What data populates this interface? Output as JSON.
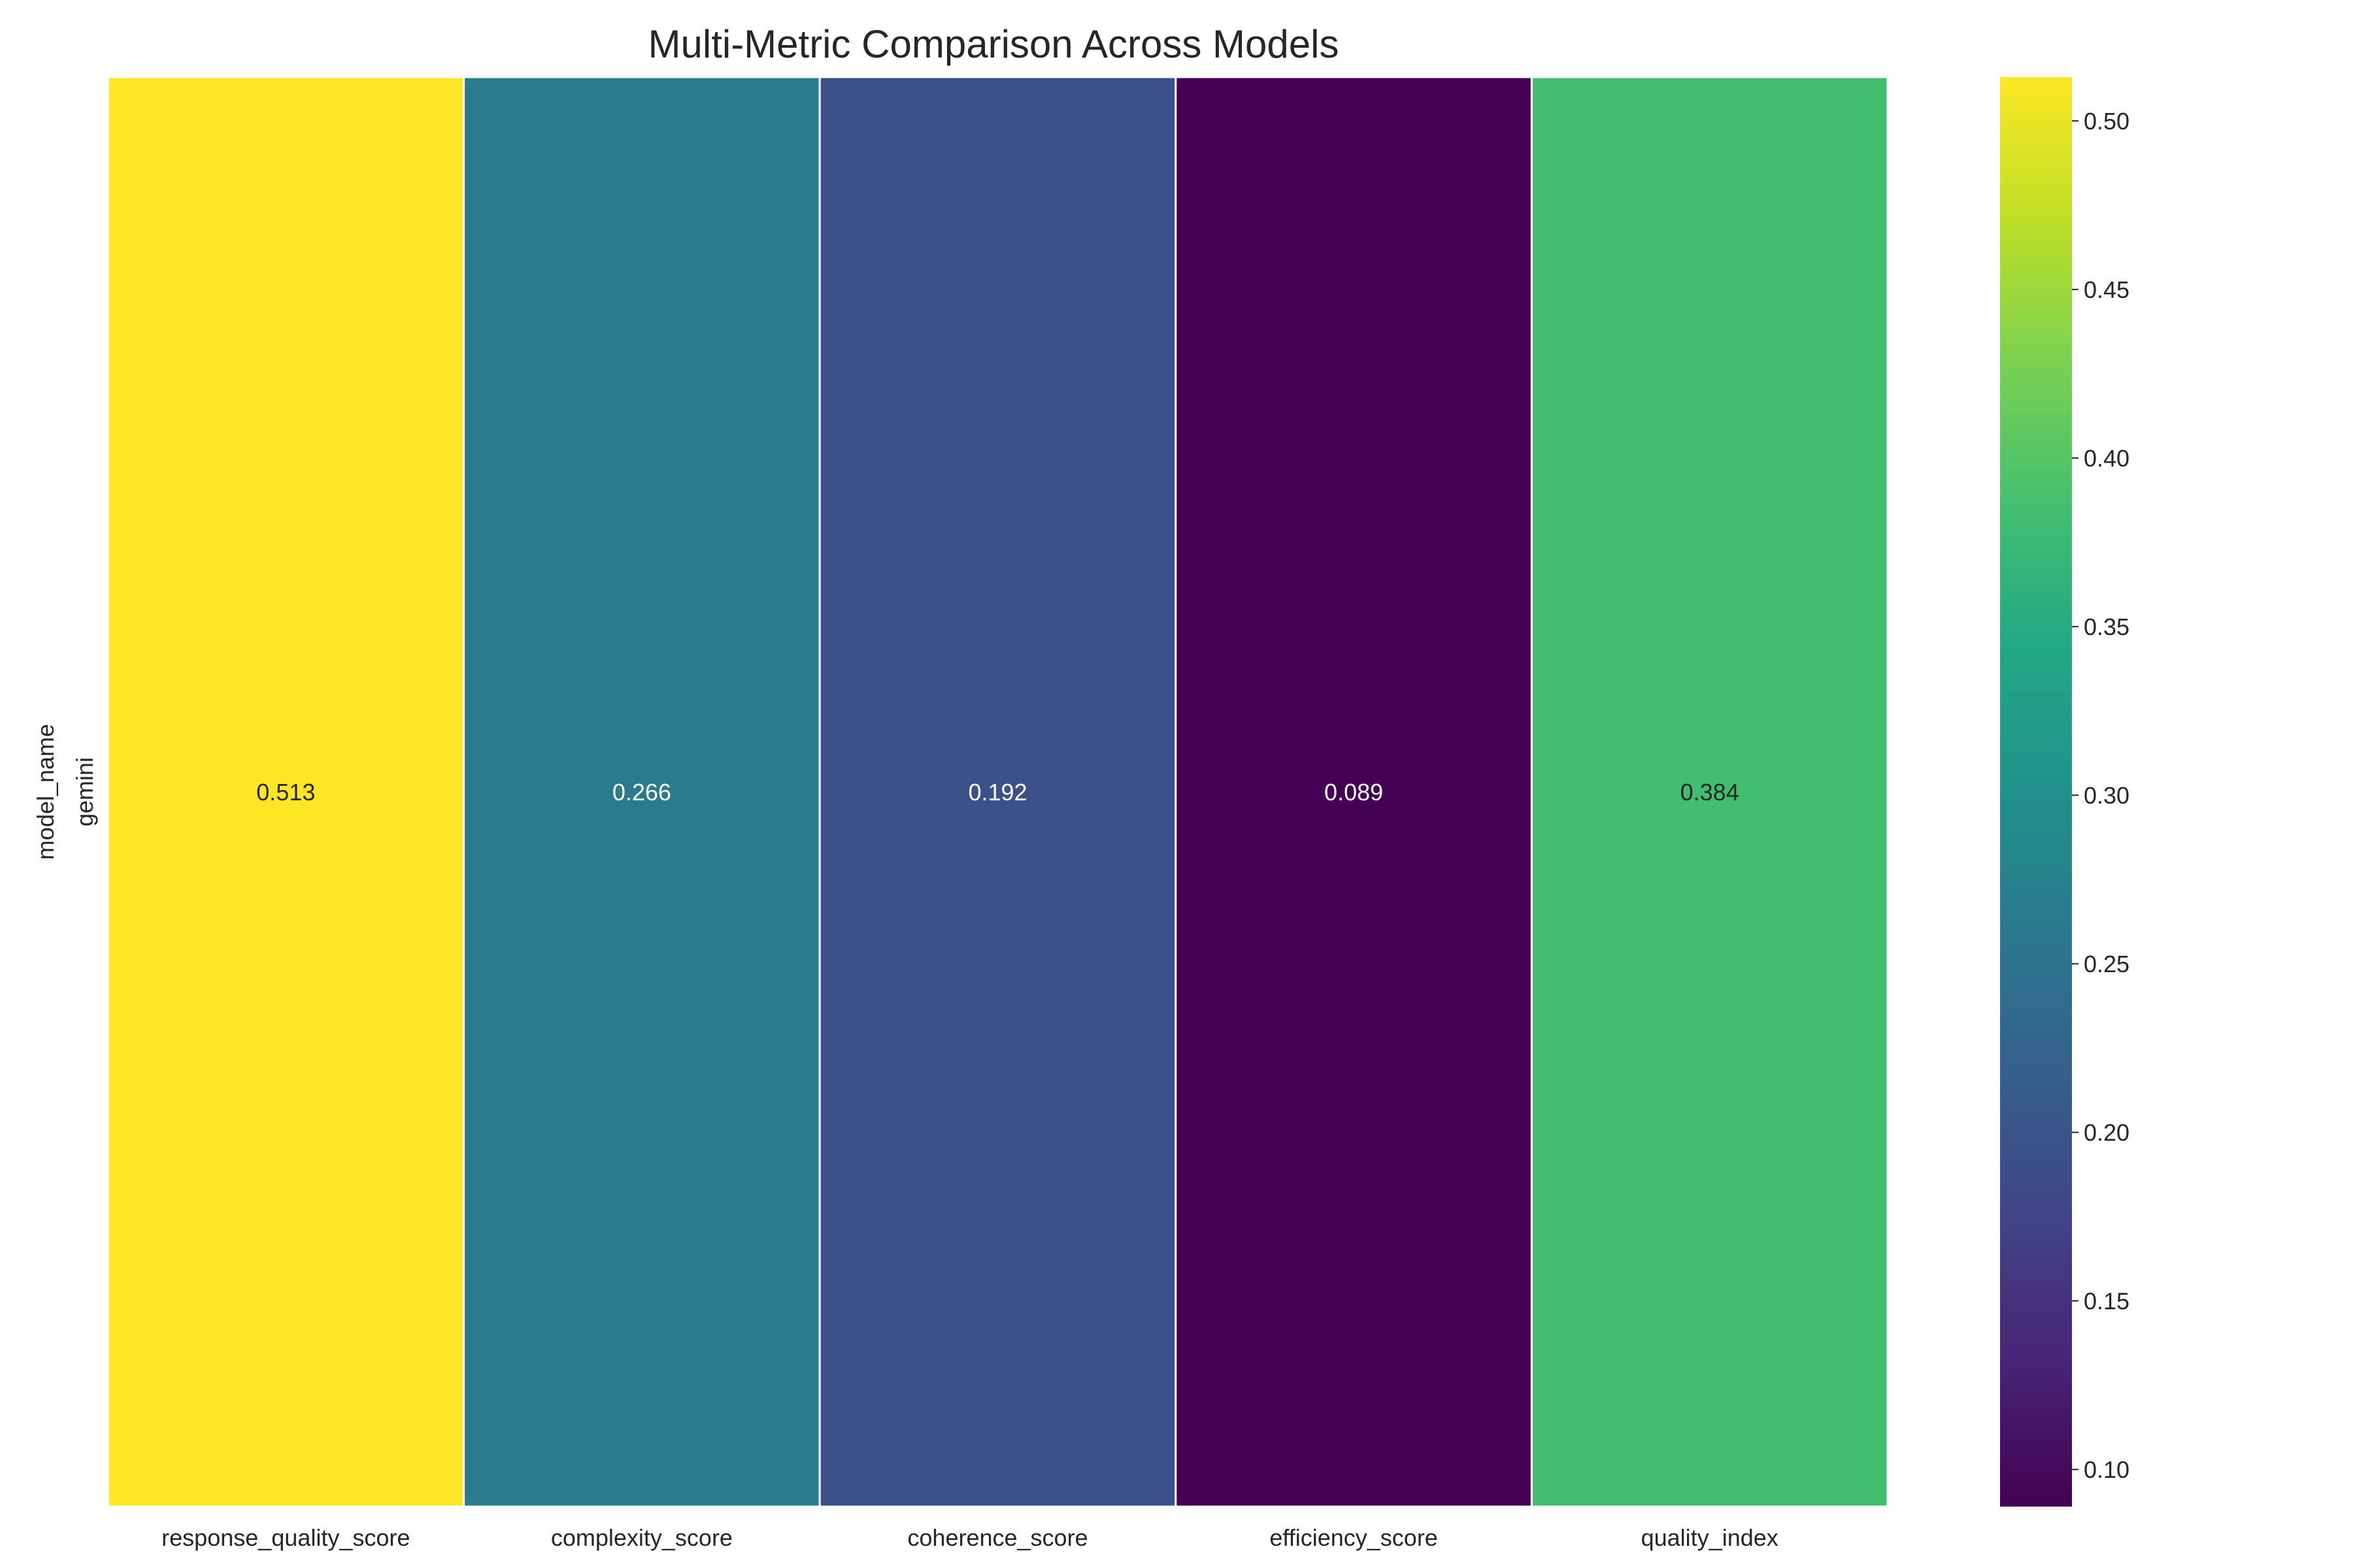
{
  "chart_data": {
    "type": "heatmap",
    "title": "Multi-Metric Comparison Across Models",
    "ylabel": "model_name",
    "xlabel": "",
    "rows": [
      "gemini"
    ],
    "columns": [
      "response_quality_score",
      "complexity_score",
      "coherence_score",
      "efficiency_score",
      "quality_index"
    ],
    "values": [
      [
        0.513,
        0.266,
        0.192,
        0.089,
        0.384
      ]
    ],
    "value_labels": [
      [
        "0.513",
        "0.266",
        "0.192",
        "0.089",
        "0.384"
      ]
    ],
    "colormap": "viridis",
    "colorbar": {
      "range": [
        0.089,
        0.513
      ],
      "ticks": [
        0.1,
        0.15,
        0.2,
        0.25,
        0.3,
        0.35,
        0.4,
        0.45,
        0.5
      ],
      "tick_labels": [
        "0.10",
        "0.15",
        "0.20",
        "0.25",
        "0.30",
        "0.35",
        "0.40",
        "0.45",
        "0.50"
      ]
    },
    "grid": false,
    "cell_separator_color": "#ffffff"
  }
}
